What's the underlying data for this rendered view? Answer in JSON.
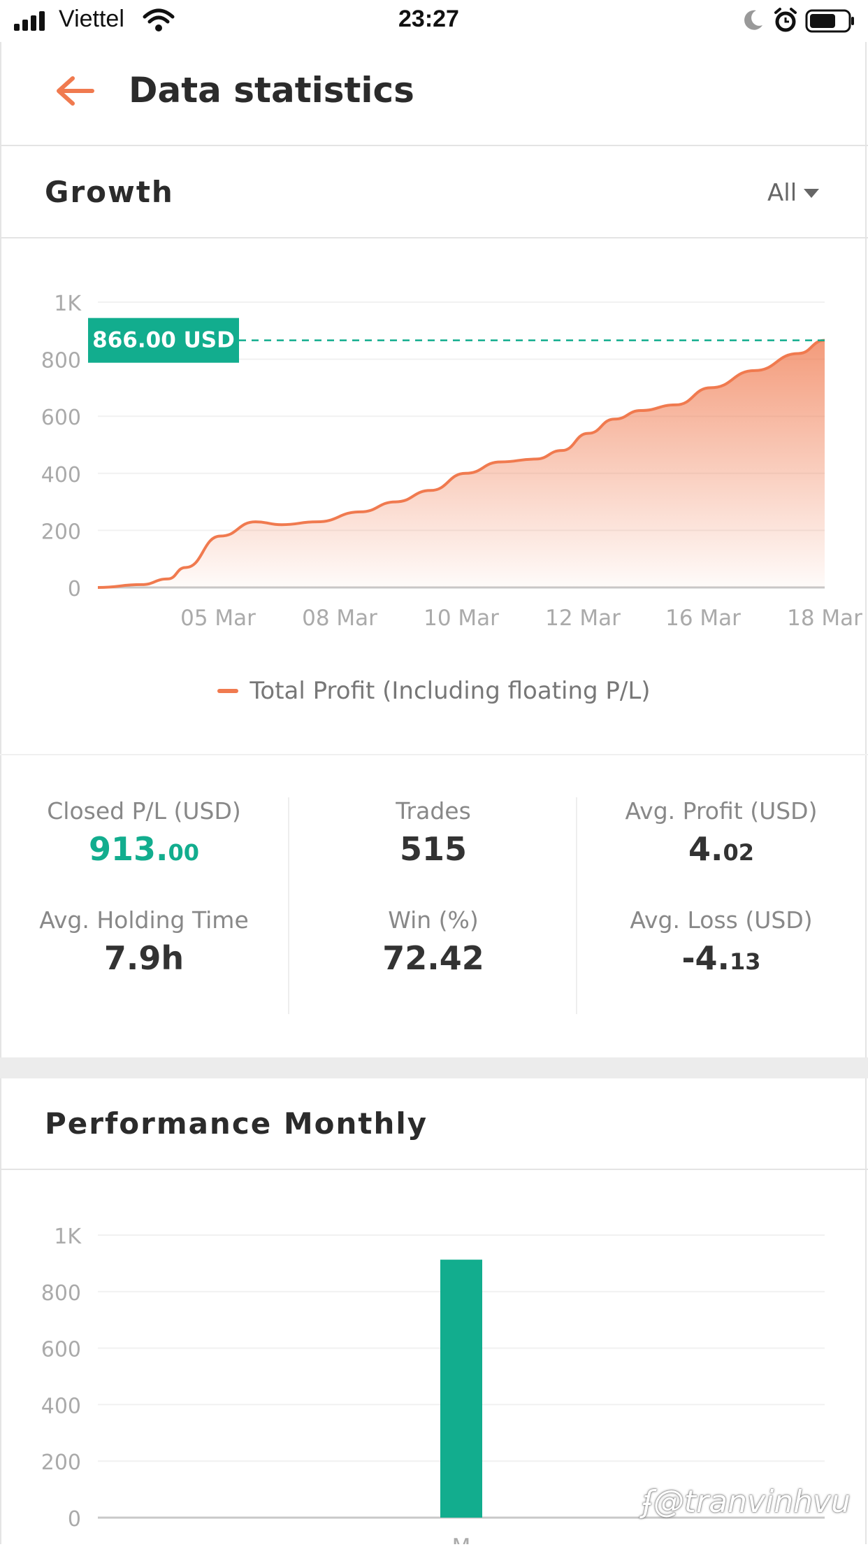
{
  "status_bar": {
    "carrier": "Viettel",
    "time": "23:27"
  },
  "header": {
    "title": "Data statistics"
  },
  "growth": {
    "section_title": "Growth",
    "filter_label": "All",
    "current_value_badge": "866.00 USD",
    "legend_label": "Total Profit (Including floating P/L)",
    "line_color": "#f07a4f",
    "badge_color": "#12ad8e",
    "chart_data": {
      "type": "area",
      "yticks": [
        "0",
        "200",
        "400",
        "600",
        "800",
        "1K"
      ],
      "ylim": [
        0,
        1000
      ],
      "xticks": [
        "05 Mar",
        "08 Mar",
        "10 Mar",
        "12 Mar",
        "16 Mar",
        "18 Mar"
      ],
      "series": [
        {
          "name": "Total Profit (Including floating P/L)",
          "x": [
            0,
            0.5,
            0.8,
            1,
            1.4,
            1.8,
            2.1,
            2.5,
            3,
            3.4,
            3.8,
            4.2,
            4.6,
            5,
            5.3,
            5.6,
            5.9,
            6.2,
            6.6,
            7
          ],
          "values": [
            0,
            10,
            30,
            70,
            180,
            230,
            220,
            230,
            265,
            300,
            340,
            400,
            440,
            450,
            480,
            540,
            590,
            620,
            640,
            700
          ]
        }
      ]
    },
    "chart_tail": {
      "points": [
        [
          7.5,
          760
        ],
        [
          8,
          820
        ],
        [
          8.3,
          866
        ]
      ]
    }
  },
  "stats": {
    "closed_pl": {
      "label": "Closed P/L (USD)",
      "int": "913.",
      "dec": "00",
      "color": "#12ad8e"
    },
    "trades": {
      "label": "Trades",
      "value": "515"
    },
    "avg_profit": {
      "label": "Avg. Profit (USD)",
      "int": "4.",
      "dec": "02"
    },
    "avg_holding": {
      "label": "Avg. Holding Time",
      "value": "7.9h"
    },
    "win": {
      "label": "Win (%)",
      "value": "72.42"
    },
    "avg_loss": {
      "label": "Avg. Loss (USD)",
      "int": "-4.",
      "dec": "13"
    }
  },
  "performance": {
    "section_title": "Performance Monthly",
    "bar_color": "#12ad8e",
    "chart_data": {
      "type": "bar",
      "yticks": [
        "0",
        "200",
        "400",
        "600",
        "800",
        "1K"
      ],
      "ylim": [
        0,
        1000
      ],
      "categories": [
        "M"
      ],
      "values": [
        913
      ]
    }
  },
  "watermark": "@tranvinhvu"
}
